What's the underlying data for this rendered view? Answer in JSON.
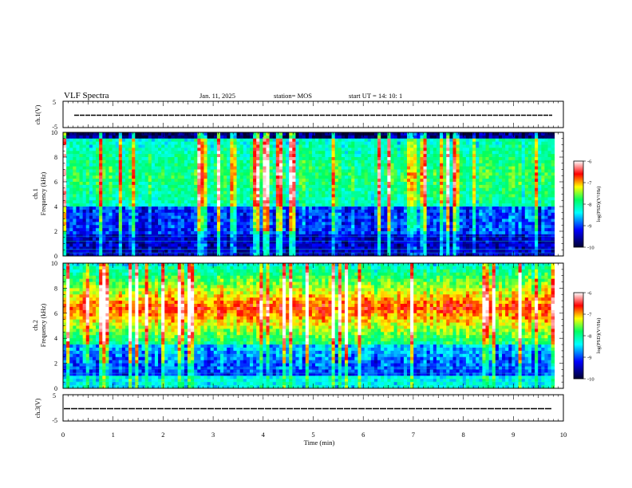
{
  "header": {
    "title": "VLF Spectra",
    "date": "Jan. 11, 2025",
    "station": "station= MOS",
    "start": "start UT =  14: 10: 1"
  },
  "chart_data": [
    {
      "type": "line",
      "panel": "ch1-waveform",
      "ylabel": "ch.1(V)",
      "ylim": [
        -5,
        5
      ],
      "y_ticks": [
        5,
        -5
      ],
      "xlim": [
        0,
        10
      ],
      "series": [
        {
          "values": [
            -0.3,
            -0.3
          ]
        }
      ]
    },
    {
      "type": "heatmap",
      "panel": "ch1-spectrogram",
      "ylabel_line1": "ch.1",
      "ylabel_line2": "Frequency (kHz)",
      "ylim": [
        0,
        10
      ],
      "y_ticks": [
        0,
        2,
        4,
        6,
        8,
        10
      ],
      "xlim": [
        0,
        10
      ],
      "data_end_min": 9.82,
      "colorbar": {
        "label": "log(PSD)(V²/Hz)",
        "range": [
          -10,
          -6
        ],
        "ticks": [
          -6,
          -7,
          -8,
          -9,
          -10
        ]
      }
    },
    {
      "type": "heatmap",
      "panel": "ch2-spectrogram",
      "ylabel_line1": "ch.2",
      "ylabel_line2": "Frequency (kHz)",
      "ylim": [
        0,
        10
      ],
      "y_ticks": [
        0,
        2,
        4,
        6,
        8,
        10
      ],
      "xlim": [
        0,
        10
      ],
      "data_end_min": 9.82,
      "colorbar": {
        "label": "log(PSD)(V²/Hz)",
        "range": [
          -10,
          -6
        ],
        "ticks": [
          -6,
          -7,
          -8,
          -9,
          -10
        ]
      }
    },
    {
      "type": "line",
      "panel": "ch3-waveform",
      "ylabel": "ch.3(V)",
      "ylim": [
        -5,
        5
      ],
      "y_ticks": [
        5,
        -5
      ],
      "xlim": [
        0,
        10
      ],
      "series": [
        {
          "values": [
            -0.3,
            -0.3
          ]
        }
      ]
    }
  ],
  "x_axis": {
    "label": "Time (min)",
    "ticks": [
      "0",
      "1",
      "2",
      "3",
      "4",
      "5",
      "6",
      "7",
      "8",
      "9",
      "10"
    ]
  },
  "colormap": [
    "#000030",
    "#0000ff",
    "#00ffff",
    "#00ff60",
    "#ffff00",
    "#ff0000",
    "#ffffff"
  ]
}
